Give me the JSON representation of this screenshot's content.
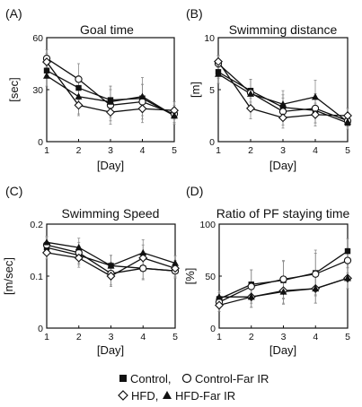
{
  "colors": {
    "ink": "#111111",
    "errorbar": "#8a8a8a",
    "frame": "#111111",
    "background": "#ffffff"
  },
  "legend": {
    "row1": [
      {
        "marker": "filled-square",
        "label": "Control,"
      },
      {
        "marker": "open-circle",
        "label": "Control-Far IR"
      }
    ],
    "row2": [
      {
        "marker": "open-diamond",
        "label": "HFD,"
      },
      {
        "marker": "filled-triangle",
        "label": "HFD-Far IR"
      }
    ]
  },
  "chart_data": [
    {
      "panel": "(A)",
      "type": "line",
      "title": "Goal time",
      "xlabel": "[Day]",
      "ylabel": "[sec]",
      "x": [
        1,
        2,
        3,
        4,
        5
      ],
      "xlim": [
        1,
        5
      ],
      "ylim": [
        0,
        60
      ],
      "yticks": [
        0,
        30,
        60
      ],
      "series": [
        {
          "name": "Control",
          "marker": "filled-square",
          "values": [
            41,
            31,
            24,
            25,
            15
          ],
          "errors": [
            4,
            7,
            8,
            8,
            4
          ]
        },
        {
          "name": "Control-Far IR",
          "marker": "open-circle",
          "values": [
            48,
            36,
            21,
            23,
            16
          ],
          "errors": [
            5,
            9,
            9,
            10,
            5
          ]
        },
        {
          "name": "HFD",
          "marker": "open-diamond",
          "values": [
            46,
            21,
            17,
            19,
            18
          ],
          "errors": [
            5,
            6,
            7,
            8,
            5
          ]
        },
        {
          "name": "HFD-Far IR",
          "marker": "filled-triangle",
          "values": [
            38,
            26,
            23,
            26,
            15
          ],
          "errors": [
            6,
            10,
            9,
            11,
            5
          ]
        }
      ]
    },
    {
      "panel": "(B)",
      "type": "line",
      "title": "Swimming distance",
      "xlabel": "[Day]",
      "ylabel": "[m]",
      "x": [
        1,
        2,
        3,
        4,
        5
      ],
      "xlim": [
        1,
        5
      ],
      "ylim": [
        0,
        10
      ],
      "yticks": [
        0,
        5,
        10
      ],
      "series": [
        {
          "name": "Control",
          "marker": "filled-square",
          "values": [
            6.7,
            4.9,
            3.3,
            3.0,
            1.8
          ],
          "errors": [
            0.6,
            1.1,
            1.2,
            1.2,
            0.6
          ]
        },
        {
          "name": "Control-Far IR",
          "marker": "open-circle",
          "values": [
            7.5,
            4.7,
            2.9,
            3.2,
            2.0
          ],
          "errors": [
            0.7,
            1.3,
            1.3,
            1.4,
            0.6
          ]
        },
        {
          "name": "HFD",
          "marker": "open-diamond",
          "values": [
            7.7,
            3.2,
            2.3,
            2.6,
            2.5
          ],
          "errors": [
            0.6,
            1.0,
            1.0,
            1.1,
            0.7
          ]
        },
        {
          "name": "HFD-Far IR",
          "marker": "filled-triangle",
          "values": [
            6.5,
            4.6,
            3.6,
            4.3,
            1.9
          ],
          "errors": [
            0.9,
            1.4,
            1.3,
            1.6,
            0.7
          ]
        }
      ]
    },
    {
      "panel": "(C)",
      "type": "line",
      "title": "Swimming Speed",
      "xlabel": "[Day]",
      "ylabel": "[m/sec]",
      "x": [
        1,
        2,
        3,
        4,
        5
      ],
      "xlim": [
        1,
        5
      ],
      "ylim": [
        0,
        0.2
      ],
      "yticks": [
        0,
        0.1,
        0.2
      ],
      "series": [
        {
          "name": "Control",
          "marker": "filled-square",
          "values": [
            0.155,
            0.14,
            0.12,
            0.115,
            0.11
          ],
          "errors": [
            0.012,
            0.018,
            0.02,
            0.02,
            0.012
          ]
        },
        {
          "name": "Control-Far IR",
          "marker": "open-circle",
          "values": [
            0.16,
            0.145,
            0.105,
            0.115,
            0.11
          ],
          "errors": [
            0.014,
            0.02,
            0.022,
            0.022,
            0.014
          ]
        },
        {
          "name": "HFD",
          "marker": "open-diamond",
          "values": [
            0.145,
            0.135,
            0.1,
            0.135,
            0.115
          ],
          "errors": [
            0.012,
            0.018,
            0.02,
            0.025,
            0.015
          ]
        },
        {
          "name": "HFD-Far IR",
          "marker": "filled-triangle",
          "values": [
            0.165,
            0.155,
            0.12,
            0.145,
            0.125
          ],
          "errors": [
            0.012,
            0.018,
            0.02,
            0.025,
            0.014
          ]
        }
      ]
    },
    {
      "panel": "(D)",
      "type": "line",
      "title": "Ratio of PF staying time",
      "xlabel": "[Day]",
      "ylabel": "[%]",
      "x": [
        1,
        2,
        3,
        4,
        5
      ],
      "xlim": [
        1,
        5
      ],
      "ylim": [
        0,
        100
      ],
      "yticks": [
        0,
        50,
        100
      ],
      "series": [
        {
          "name": "Control",
          "marker": "filled-square",
          "values": [
            28,
            42,
            46,
            53,
            74
          ],
          "errors": [
            6,
            14,
            18,
            22,
            12
          ]
        },
        {
          "name": "Control-Far IR",
          "marker": "open-circle",
          "values": [
            25,
            40,
            47,
            52,
            65
          ],
          "errors": [
            6,
            16,
            18,
            20,
            12
          ]
        },
        {
          "name": "HFD",
          "marker": "open-diamond",
          "values": [
            22,
            30,
            36,
            38,
            48
          ],
          "errors": [
            6,
            10,
            12,
            14,
            10
          ]
        },
        {
          "name": "HFD-Far IR",
          "marker": "filled-triangle",
          "values": [
            30,
            30,
            35,
            38,
            48
          ],
          "errors": [
            6,
            10,
            12,
            14,
            10
          ]
        }
      ]
    }
  ]
}
